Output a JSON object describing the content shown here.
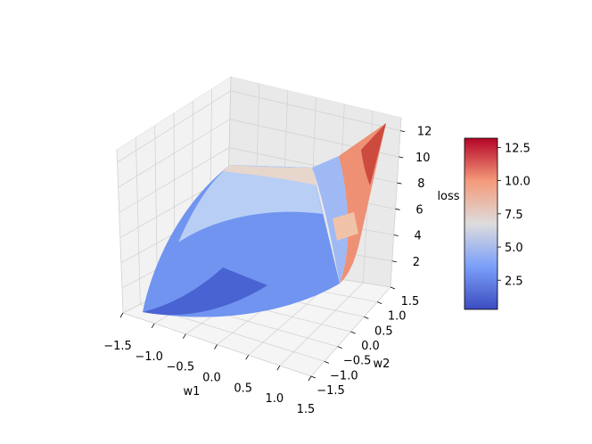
{
  "chart_data": {
    "type": "surface3d",
    "title": "",
    "xlabel": "w1",
    "ylabel": "w2",
    "zlabel": "loss",
    "xlim": [
      -1.5,
      1.5
    ],
    "ylim": [
      -1.5,
      1.5
    ],
    "zlim": [
      0,
      13
    ],
    "xticks": [
      "−1.5",
      "−1.0",
      "−0.5",
      "0.0",
      "0.5",
      "1.0",
      "1.5"
    ],
    "yticks": [
      "−1.5",
      "−1.0",
      "−0.5",
      "0.0",
      "0.5",
      "1.0",
      "1.5"
    ],
    "zticks": [
      "2",
      "4",
      "6",
      "8",
      "10",
      "12"
    ],
    "colormap": "coolwarm",
    "colorbar": {
      "min": 0.3,
      "max": 13.2,
      "ticks": [
        "2.5",
        "5.0",
        "7.5",
        "10.0",
        "12.5"
      ]
    },
    "surface_samples": [
      {
        "w1": -1.5,
        "w2": -1.5,
        "loss": 0.8
      },
      {
        "w1": 0.0,
        "w2": -1.5,
        "loss": 1.2
      },
      {
        "w1": 1.5,
        "w2": -1.5,
        "loss": 0.5
      },
      {
        "w1": -1.5,
        "w2": 0.0,
        "loss": 2.5
      },
      {
        "w1": 0.0,
        "w2": 0.0,
        "loss": 3.4
      },
      {
        "w1": 1.5,
        "w2": 0.0,
        "loss": 5.0
      },
      {
        "w1": -1.5,
        "w2": 1.5,
        "loss": 7.5
      },
      {
        "w1": 0.0,
        "w2": 1.5,
        "loss": 8.2
      },
      {
        "w1": 1.5,
        "w2": 1.5,
        "loss": 13.2
      }
    ]
  }
}
